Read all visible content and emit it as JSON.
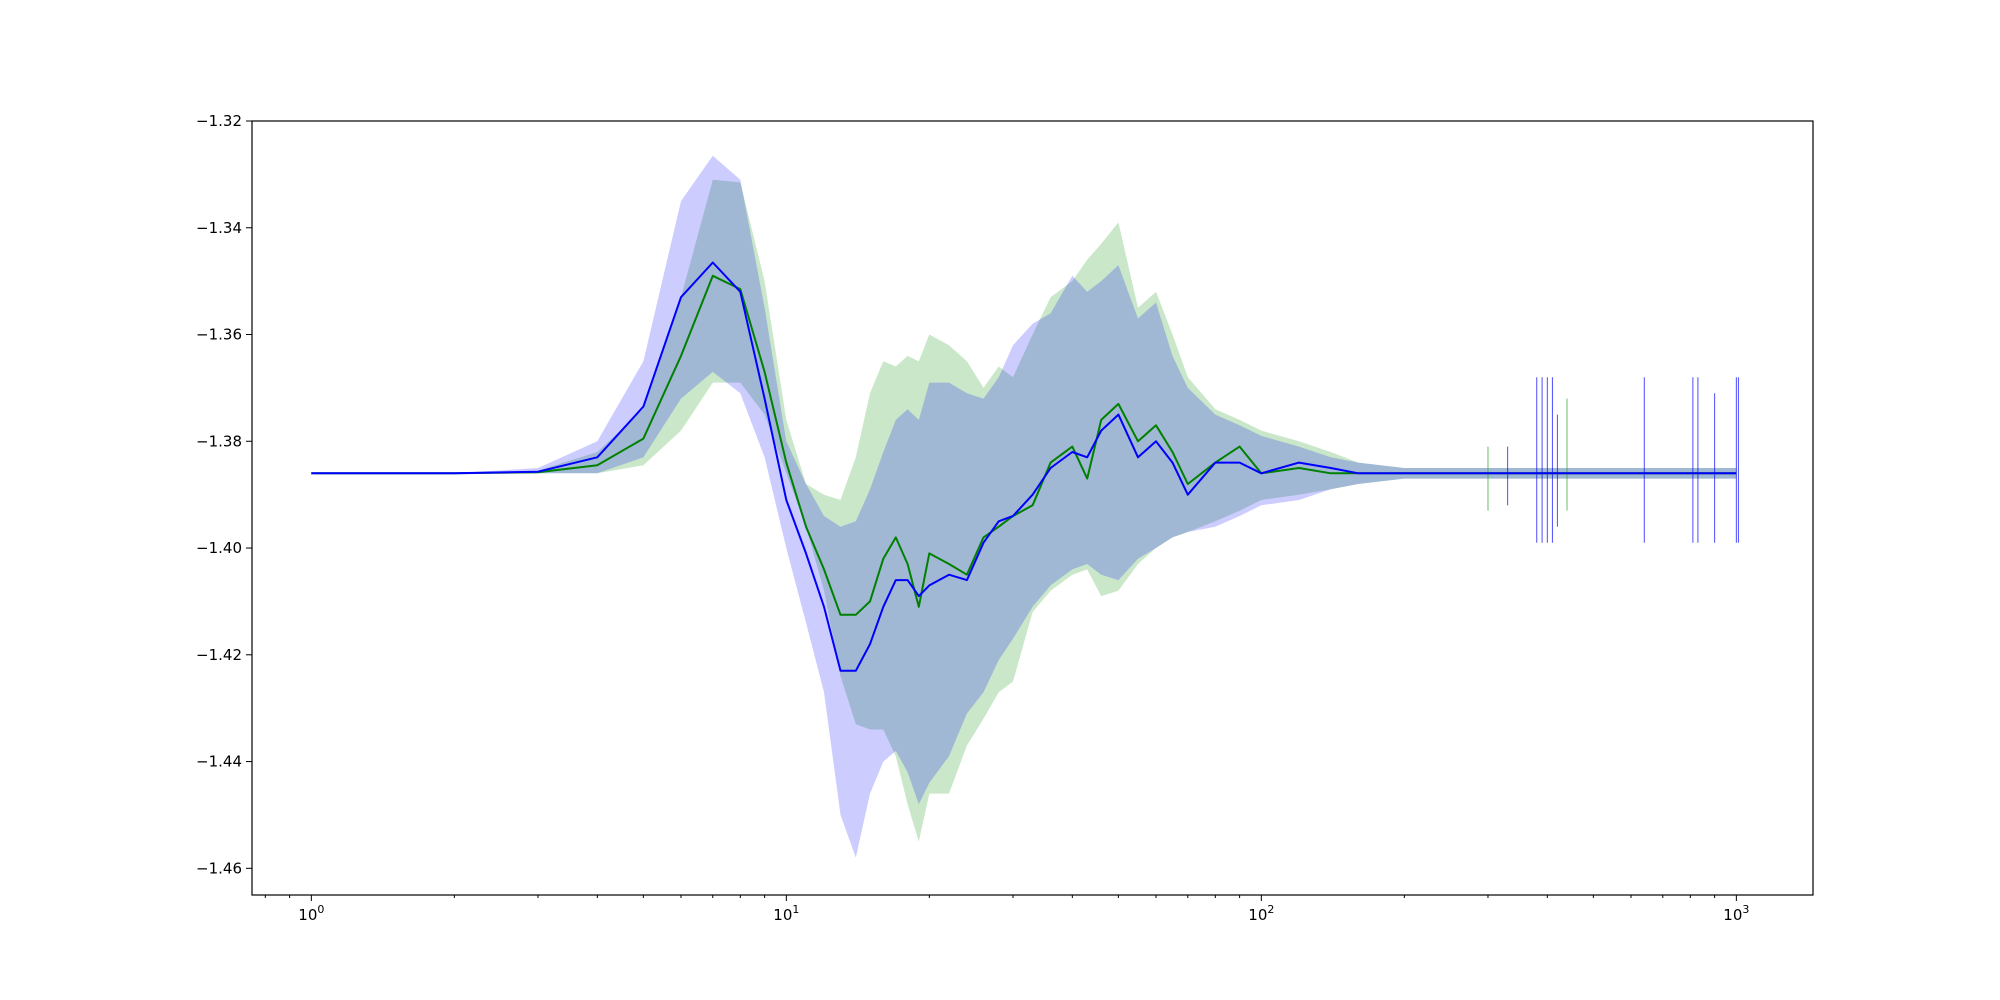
{
  "chart_data": {
    "type": "line",
    "title": "",
    "xlabel": "",
    "ylabel": "",
    "x_scale": "log",
    "xlim": [
      0.75,
      1450
    ],
    "ylim": [
      -1.465,
      -1.32
    ],
    "grid": false,
    "x_ticks": [
      {
        "value": 1,
        "base": "10",
        "exp": "0"
      },
      {
        "value": 10,
        "base": "10",
        "exp": "1"
      },
      {
        "value": 100,
        "base": "10",
        "exp": "2"
      },
      {
        "value": 1000,
        "base": "10",
        "exp": "3"
      }
    ],
    "y_ticks": [
      {
        "value": -1.32,
        "label": "−1.32"
      },
      {
        "value": -1.34,
        "label": "−1.34"
      },
      {
        "value": -1.36,
        "label": "−1.36"
      },
      {
        "value": -1.38,
        "label": "−1.38"
      },
      {
        "value": -1.4,
        "label": "−1.40"
      },
      {
        "value": -1.42,
        "label": "−1.42"
      },
      {
        "value": -1.44,
        "label": "−1.44"
      },
      {
        "value": -1.46,
        "label": "−1.46"
      }
    ],
    "series": [
      {
        "color": "#008000",
        "band_color": "#2ca02c",
        "band_opacity": 0.25,
        "x": [
          1,
          2,
          3,
          4,
          5,
          6,
          7,
          8,
          9,
          10,
          11,
          12,
          13,
          14,
          15,
          16,
          17,
          18,
          19,
          20,
          22,
          24,
          26,
          28,
          30,
          33,
          36,
          40,
          43,
          46,
          50,
          55,
          60,
          65,
          70,
          80,
          90,
          100,
          120,
          140,
          160,
          200,
          250,
          300,
          400,
          500,
          600,
          700,
          800,
          900,
          1000
        ],
        "y": [
          -1.386,
          -1.386,
          -1.3858,
          -1.3845,
          -1.3795,
          -1.364,
          -1.349,
          -1.3515,
          -1.367,
          -1.384,
          -1.396,
          -1.404,
          -1.4125,
          -1.4125,
          -1.41,
          -1.402,
          -1.398,
          -1.403,
          -1.411,
          -1.401,
          -1.403,
          -1.405,
          -1.398,
          -1.396,
          -1.394,
          -1.392,
          -1.384,
          -1.381,
          -1.387,
          -1.376,
          -1.373,
          -1.38,
          -1.377,
          -1.382,
          -1.388,
          -1.384,
          -1.381,
          -1.386,
          -1.385,
          -1.386,
          -1.386,
          -1.386,
          -1.386,
          -1.386,
          -1.386,
          -1.386,
          -1.386,
          -1.386,
          -1.386,
          -1.386,
          -1.386
        ],
        "upper": [
          -1.386,
          -1.386,
          -1.3855,
          -1.382,
          -1.374,
          -1.353,
          -1.331,
          -1.3315,
          -1.35,
          -1.376,
          -1.388,
          -1.39,
          -1.391,
          -1.383,
          -1.371,
          -1.365,
          -1.366,
          -1.364,
          -1.365,
          -1.36,
          -1.362,
          -1.365,
          -1.37,
          -1.366,
          -1.368,
          -1.36,
          -1.353,
          -1.35,
          -1.346,
          -1.343,
          -1.339,
          -1.355,
          -1.352,
          -1.36,
          -1.368,
          -1.374,
          -1.376,
          -1.378,
          -1.38,
          -1.382,
          -1.384,
          -1.385,
          -1.385,
          -1.385,
          -1.385,
          -1.385,
          -1.385,
          -1.385,
          -1.385,
          -1.385,
          -1.385
        ],
        "lower": [
          -1.386,
          -1.386,
          -1.386,
          -1.386,
          -1.3845,
          -1.378,
          -1.369,
          -1.369,
          -1.375,
          -1.386,
          -1.396,
          -1.408,
          -1.424,
          -1.433,
          -1.434,
          -1.434,
          -1.439,
          -1.448,
          -1.455,
          -1.446,
          -1.446,
          -1.437,
          -1.432,
          -1.427,
          -1.425,
          -1.412,
          -1.408,
          -1.405,
          -1.404,
          -1.409,
          -1.408,
          -1.403,
          -1.4,
          -1.398,
          -1.397,
          -1.395,
          -1.393,
          -1.391,
          -1.39,
          -1.389,
          -1.388,
          -1.387,
          -1.387,
          -1.387,
          -1.387,
          -1.387,
          -1.387,
          -1.387,
          -1.387,
          -1.387,
          -1.387
        ]
      },
      {
        "color": "#0000ff",
        "band_color": "#0000ff",
        "band_opacity": 0.2,
        "x": [
          1,
          2,
          3,
          4,
          5,
          6,
          7,
          8,
          9,
          10,
          11,
          12,
          13,
          14,
          15,
          16,
          17,
          18,
          19,
          20,
          22,
          24,
          26,
          28,
          30,
          33,
          36,
          40,
          43,
          46,
          50,
          55,
          60,
          65,
          70,
          80,
          90,
          100,
          120,
          140,
          160,
          200,
          250,
          300,
          400,
          500,
          600,
          700,
          800,
          900,
          1000
        ],
        "y": [
          -1.386,
          -1.386,
          -1.3857,
          -1.383,
          -1.3735,
          -1.353,
          -1.3465,
          -1.352,
          -1.372,
          -1.391,
          -1.401,
          -1.411,
          -1.423,
          -1.423,
          -1.418,
          -1.411,
          -1.406,
          -1.406,
          -1.409,
          -1.407,
          -1.405,
          -1.406,
          -1.399,
          -1.395,
          -1.394,
          -1.39,
          -1.385,
          -1.382,
          -1.383,
          -1.378,
          -1.375,
          -1.383,
          -1.38,
          -1.384,
          -1.39,
          -1.384,
          -1.384,
          -1.386,
          -1.384,
          -1.385,
          -1.386,
          -1.386,
          -1.386,
          -1.386,
          -1.386,
          -1.386,
          -1.386,
          -1.386,
          -1.386,
          -1.386,
          -1.386
        ],
        "upper": [
          -1.386,
          -1.386,
          -1.385,
          -1.38,
          -1.365,
          -1.335,
          -1.3265,
          -1.331,
          -1.355,
          -1.38,
          -1.388,
          -1.394,
          -1.396,
          -1.395,
          -1.389,
          -1.382,
          -1.376,
          -1.374,
          -1.376,
          -1.369,
          -1.369,
          -1.371,
          -1.372,
          -1.368,
          -1.362,
          -1.358,
          -1.356,
          -1.349,
          -1.352,
          -1.35,
          -1.347,
          -1.357,
          -1.354,
          -1.364,
          -1.37,
          -1.375,
          -1.377,
          -1.379,
          -1.381,
          -1.383,
          -1.384,
          -1.385,
          -1.385,
          -1.385,
          -1.385,
          -1.385,
          -1.385,
          -1.385,
          -1.385,
          -1.385,
          -1.385
        ],
        "lower": [
          -1.386,
          -1.386,
          -1.386,
          -1.386,
          -1.383,
          -1.372,
          -1.367,
          -1.371,
          -1.383,
          -1.4,
          -1.414,
          -1.427,
          -1.45,
          -1.458,
          -1.446,
          -1.44,
          -1.438,
          -1.442,
          -1.448,
          -1.444,
          -1.439,
          -1.431,
          -1.427,
          -1.421,
          -1.417,
          -1.411,
          -1.407,
          -1.404,
          -1.403,
          -1.405,
          -1.406,
          -1.402,
          -1.4,
          -1.398,
          -1.397,
          -1.396,
          -1.394,
          -1.392,
          -1.391,
          -1.389,
          -1.388,
          -1.387,
          -1.387,
          -1.387,
          -1.387,
          -1.387,
          -1.387,
          -1.387,
          -1.387,
          -1.387,
          -1.387
        ]
      }
    ],
    "spikes": [
      {
        "x": 300,
        "color": "#2ca02c",
        "low": -1.393,
        "high": -1.381
      },
      {
        "x": 330,
        "color": "#0000ff",
        "low": -1.392,
        "high": -1.381
      },
      {
        "x": 380,
        "color": "#0000ff",
        "low": -1.399,
        "high": -1.368
      },
      {
        "x": 390,
        "color": "#0000ff",
        "low": -1.399,
        "high": -1.368
      },
      {
        "x": 400,
        "color": "#0000ff",
        "low": -1.399,
        "high": -1.368
      },
      {
        "x": 410,
        "color": "#0000ff",
        "low": -1.399,
        "high": -1.368
      },
      {
        "x": 420,
        "color": "#0000ff",
        "low": -1.396,
        "high": -1.375
      },
      {
        "x": 440,
        "color": "#2ca02c",
        "low": -1.393,
        "high": -1.372
      },
      {
        "x": 640,
        "color": "#0000ff",
        "low": -1.399,
        "high": -1.368
      },
      {
        "x": 810,
        "color": "#0000ff",
        "low": -1.399,
        "high": -1.368
      },
      {
        "x": 830,
        "color": "#0000ff",
        "low": -1.399,
        "high": -1.368
      },
      {
        "x": 900,
        "color": "#0000ff",
        "low": -1.399,
        "high": -1.371
      },
      {
        "x": 1000,
        "color": "#0000ff",
        "low": -1.399,
        "high": -1.368
      },
      {
        "x": 1010,
        "color": "#0000ff",
        "low": -1.399,
        "high": -1.368
      }
    ]
  }
}
